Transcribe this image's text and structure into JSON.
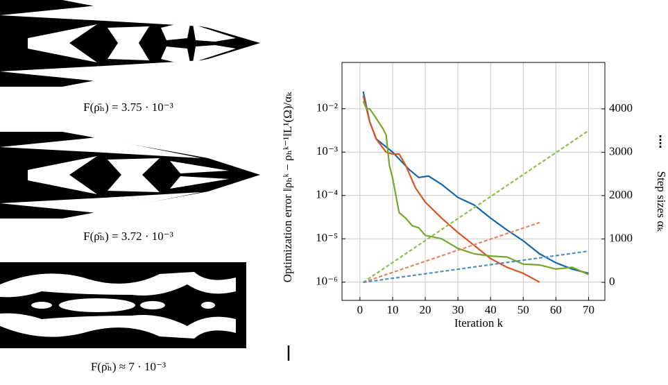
{
  "panels": [
    {
      "caption": "F(ρ̄ₕ) = 3.75 · 10⁻³"
    },
    {
      "caption": "F(ρ̄ₕ) = 3.72 · 10⁻³"
    },
    {
      "caption": "F(ρ̄ₕ) ≈ 7 · 10⁻³"
    }
  ],
  "chart_data": {
    "type": "line",
    "x_label": "Iteration k",
    "y_label": "Optimization error ‖ρₕᵏ − ρₕᵏ⁻¹‖L¹(Ω)/αₖ",
    "y2_label": "Step sizes αₖ",
    "log_y": true,
    "grid": true,
    "xlim": [
      -5.5,
      75
    ],
    "xticks": [
      0,
      10,
      20,
      30,
      40,
      50,
      60,
      70
    ],
    "ylim": [
      3.8e-07,
      0.117
    ],
    "yticks": [
      {
        "value": 1e-06,
        "label": "10⁻⁶"
      },
      {
        "value": 1e-05,
        "label": "10⁻⁵"
      },
      {
        "value": 0.0001,
        "label": "10⁻⁴"
      },
      {
        "value": 0.001,
        "label": "10⁻³"
      },
      {
        "value": 0.01,
        "label": "10⁻²"
      }
    ],
    "y2lim": [
      -416,
      5072
    ],
    "y2ticks": [
      0,
      1000,
      2000,
      3000,
      4000
    ],
    "series": [
      {
        "color": "#0f67ac",
        "style": "solid",
        "x": [
          1,
          3,
          5,
          10,
          15,
          18,
          21,
          25,
          30,
          35,
          40,
          45,
          50,
          55,
          60,
          65,
          70
        ],
        "values": [
          0.025,
          0.005,
          0.002,
          0.001,
          0.0004,
          0.00026,
          0.00028,
          0.00018,
          9e-05,
          6e-05,
          3e-05,
          1.6e-05,
          9e-06,
          4.5e-06,
          2.8e-06,
          2e-06,
          1.6e-06
        ]
      },
      {
        "color": "#d9541e",
        "style": "solid",
        "x": [
          1,
          3,
          5,
          8,
          10,
          12,
          14,
          17,
          20,
          25,
          30,
          35,
          40,
          45,
          50,
          55
        ],
        "values": [
          0.02,
          0.005,
          0.002,
          0.001,
          0.0009,
          0.0009,
          0.0005,
          0.00015,
          7e-05,
          3e-05,
          1.4e-05,
          7e-06,
          3.5e-06,
          2.2e-06,
          1.6e-06,
          1e-06
        ]
      },
      {
        "color": "#73a82c",
        "style": "solid",
        "x": [
          1,
          2,
          3,
          5,
          7,
          8,
          9,
          10,
          11,
          12,
          14,
          16,
          18,
          20,
          25,
          30,
          35,
          40,
          45,
          50,
          55,
          60,
          65,
          70
        ],
        "values": [
          0.015,
          0.01,
          0.01,
          0.006,
          0.0035,
          0.0025,
          0.0005,
          0.00025,
          0.0001,
          4e-05,
          3e-05,
          2e-05,
          1.8e-05,
          1.2e-05,
          1e-05,
          6e-06,
          4.5e-06,
          4e-06,
          3.8e-06,
          2.6e-06,
          2.5e-06,
          2e-06,
          2.2e-06,
          1.5e-06
        ]
      },
      {
        "color": "#8cbf4a",
        "style": "dashed",
        "axis": "y2",
        "x": [
          1,
          70
        ],
        "values": [
          0,
          3500
        ]
      },
      {
        "color": "#e8845a",
        "style": "dashed",
        "axis": "y2",
        "x": [
          1,
          55
        ],
        "values": [
          0,
          1380
        ]
      },
      {
        "color": "#4d8ec9",
        "style": "dashed",
        "axis": "y2",
        "x": [
          1,
          70
        ],
        "values": [
          0,
          720
        ]
      }
    ]
  }
}
